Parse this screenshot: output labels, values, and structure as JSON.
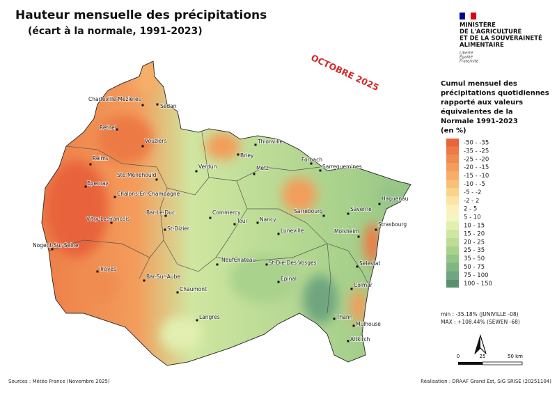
{
  "header": {
    "title": "Hauteur mensuelle des précipitations",
    "subtitle": "(écart à la normale, 1991-2023)",
    "stamp": "OCTOBRE 2025"
  },
  "ministry": {
    "lines": [
      "MINISTÈRE",
      "DE L'AGRICULTURE",
      "ET DE LA SOUVERAINETÉ",
      "ALIMENTAIRE"
    ],
    "motto": [
      "Liberté",
      "Égalité",
      "Fraternité"
    ]
  },
  "legend": {
    "title": [
      "Cumul mensuel des",
      "précipitations quotidiennes",
      "rapporté aux valeurs",
      "équivalentes de la",
      "Normale 1991-2023",
      "(en %)"
    ],
    "items": [
      {
        "label": "-50 - -35",
        "color": "#e8643a"
      },
      {
        "label": "-35 - -25",
        "color": "#ec7a45"
      },
      {
        "label": "-25 - -20",
        "color": "#f08c50"
      },
      {
        "label": "-20 - -15",
        "color": "#f39d5c"
      },
      {
        "label": "-15 - -10",
        "color": "#f6ae68"
      },
      {
        "label": "-10 - -5",
        "color": "#f8c078"
      },
      {
        "label": "-5 - -2",
        "color": "#fad48c"
      },
      {
        "label": "-2 - 2",
        "color": "#fce4a4"
      },
      {
        "label": "2 - 5",
        "color": "#fdf0bc"
      },
      {
        "label": "5 - 10",
        "color": "#f3f5c4"
      },
      {
        "label": "10 - 15",
        "color": "#e2efb0"
      },
      {
        "label": "15 - 20",
        "color": "#cfe6a0"
      },
      {
        "label": "20 - 25",
        "color": "#bddd94"
      },
      {
        "label": "25 - 35",
        "color": "#a9d28c"
      },
      {
        "label": "35 - 50",
        "color": "#94c586"
      },
      {
        "label": "50 - 75",
        "color": "#7fb682"
      },
      {
        "label": "75 - 100",
        "color": "#6fa67f"
      },
      {
        "label": "100 - 150",
        "color": "#5a8f70"
      }
    ]
  },
  "stats": {
    "min": "min : -35.18% (JUNIVILLE -08)",
    "max": "MAX : +108.44% (SEWEN -68)"
  },
  "scale": {
    "labels": [
      "0",
      "25",
      "50 km"
    ]
  },
  "footer": {
    "sources": "Sources : Météo France (Novembre 2025)",
    "credit": "Réalisation : DRAAF Grand Est, SIG SRISE (20251104)"
  },
  "cities": [
    "Charleville-Mezieres",
    "Sedan",
    "Rethel",
    "Vouziers",
    "Reims",
    "Ste-Menehould",
    "Epernay",
    "Chalons-En-Champagne",
    "Verdun",
    "Briey",
    "Thionville",
    "Metz",
    "Forbach",
    "Sarreguemines",
    "Bar-Le-Duc",
    "Commercy",
    "Toul",
    "Nancy",
    "Sarrebourg",
    "Saverne",
    "Haguenau",
    "Strasbourg",
    "Vitry-Le-Francois",
    "St-Dizier",
    "Luneville",
    "Molsheim",
    "Nogent-Sur-Seine",
    "NeufChateau",
    "St-Die-Des-Vosges",
    "Selestat",
    "Troyes",
    "Bar-Sur-Aube",
    "Epinal",
    "Colmar",
    "Chaumont",
    "Langres",
    "Thann",
    "Mulhouse",
    "Altkirch"
  ]
}
